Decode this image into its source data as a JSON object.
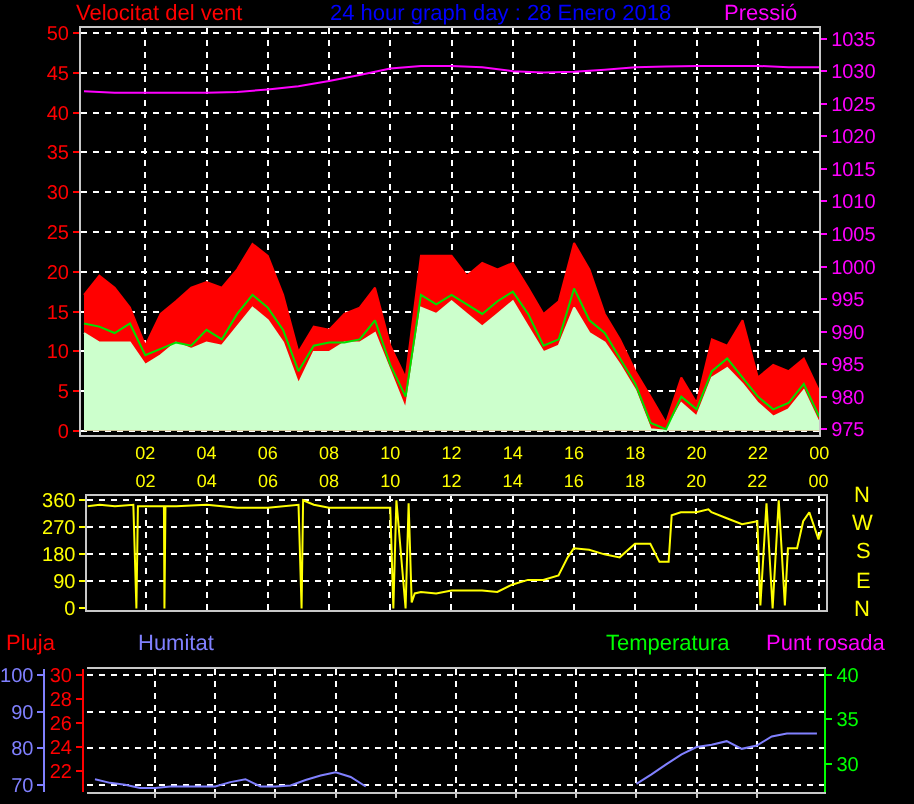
{
  "chart_data": [
    {
      "type": "line",
      "title": "24 hour graph day : 28 Enero 2018",
      "ylabel": "Velocitat del vent",
      "y2label": "Pressió",
      "x": [
        "2018-01-28T00:00",
        "2018-01-28T00:30",
        "2018-01-28T01:00",
        "2018-01-28T01:30",
        "2018-01-28T02:00",
        "2018-01-28T02:30",
        "2018-01-28T03:00",
        "2018-01-28T03:30",
        "2018-01-28T04:00",
        "2018-01-28T04:30",
        "2018-01-28T05:00",
        "2018-01-28T05:30",
        "2018-01-28T06:00",
        "2018-01-28T06:30",
        "2018-01-28T07:00",
        "2018-01-28T07:30",
        "2018-01-28T08:00",
        "2018-01-28T08:30",
        "2018-01-28T09:00",
        "2018-01-28T09:30",
        "2018-01-28T10:00",
        "2018-01-28T10:30",
        "2018-01-28T11:00",
        "2018-01-28T11:30",
        "2018-01-28T12:00",
        "2018-01-28T12:30",
        "2018-01-28T13:00",
        "2018-01-28T13:30",
        "2018-01-28T14:00",
        "2018-01-28T14:30",
        "2018-01-28T15:00",
        "2018-01-28T15:30",
        "2018-01-28T16:00",
        "2018-01-28T16:30",
        "2018-01-28T17:00",
        "2018-01-28T17:30",
        "2018-01-28T18:00",
        "2018-01-28T18:30",
        "2018-01-28T19:00",
        "2018-01-28T19:30",
        "2018-01-28T20:00",
        "2018-01-28T20:30",
        "2018-01-28T21:00",
        "2018-01-28T21:30",
        "2018-01-28T22:00",
        "2018-01-28T22:30",
        "2018-01-28T23:00",
        "2018-01-28T23:30",
        "2018-01-29T00:00"
      ],
      "series": [
        {
          "type": "area",
          "color": "#ff0000",
          "values": [
            17.1,
            19.5,
            18,
            15.5,
            10.7,
            14.7,
            16.3,
            18,
            18.7,
            18,
            20.3,
            23.5,
            22,
            17.1,
            9.9,
            13.1,
            12.7,
            14.7,
            15.5,
            18,
            10.7,
            6.7,
            22,
            22,
            22,
            19.5,
            21.1,
            20.3,
            21.1,
            18,
            14.7,
            16.3,
            23.6,
            20.3,
            14.7,
            11.5,
            7.5,
            4.3,
            1,
            6.7,
            3.5,
            11.5,
            10.7,
            13.9,
            6.7,
            8.3,
            7.5,
            9.1,
            5
          ]
        },
        {
          "type": "area",
          "color": "#ccffcc",
          "values": [
            12.3,
            11.1,
            11.1,
            11.1,
            8.3,
            9.5,
            11.1,
            10.3,
            11.1,
            10.7,
            13.1,
            15.5,
            13.9,
            11.1,
            5.9,
            9.9,
            9.9,
            11.1,
            11.1,
            12.3,
            7.5,
            2.7,
            15.5,
            14.7,
            16.3,
            14.7,
            13.1,
            14.7,
            16.3,
            13.1,
            9.9,
            10.7,
            15.5,
            12.3,
            11.1,
            8.3,
            5.1,
            0.2,
            0,
            3.5,
            1.8,
            6.7,
            7.9,
            5.9,
            3.5,
            1.8,
            2.7,
            5.1,
            1
          ]
        },
        {
          "type": "line",
          "color": "#00e000",
          "values": [
            13.5,
            13.1,
            12.3,
            13.5,
            9.5,
            10.3,
            11.1,
            10.7,
            12.7,
            11.5,
            14.7,
            17.1,
            15.5,
            12.7,
            7.5,
            10.7,
            11.1,
            11.1,
            11.5,
            13.9,
            8.3,
            4.3,
            17.1,
            15.9,
            17.1,
            15.9,
            14.7,
            16.3,
            17.5,
            14.7,
            10.7,
            11.5,
            17.9,
            13.9,
            12.3,
            9.1,
            5.9,
            1,
            0.2,
            4.3,
            2.7,
            7.5,
            9.1,
            6.7,
            4.3,
            2.7,
            3.5,
            5.9,
            1.8
          ]
        },
        {
          "type": "line",
          "axis": "y2",
          "color": "#ff00ff",
          "x": [
            "2018-01-28T00:00",
            "2018-01-28T01:00",
            "2018-01-28T02:00",
            "2018-01-28T03:00",
            "2018-01-28T04:00",
            "2018-01-28T05:00",
            "2018-01-28T06:00",
            "2018-01-28T07:00",
            "2018-01-28T08:00",
            "2018-01-28T09:00",
            "2018-01-28T10:00",
            "2018-01-28T11:00",
            "2018-01-28T12:00",
            "2018-01-28T13:00",
            "2018-01-28T14:00",
            "2018-01-28T15:00",
            "2018-01-28T16:00",
            "2018-01-28T17:00",
            "2018-01-28T18:00",
            "2018-01-28T19:00",
            "2018-01-28T20:00",
            "2018-01-28T21:00",
            "2018-01-28T22:00",
            "2018-01-28T23:00",
            "2018-01-29T00:00"
          ],
          "values": [
            1026.9,
            1026.7,
            1026.7,
            1026.7,
            1026.7,
            1026.8,
            1027.2,
            1027.7,
            1028.5,
            1029.4,
            1030.4,
            1030.8,
            1030.8,
            1030.6,
            1030,
            1029.8,
            1029.9,
            1030.2,
            1030.6,
            1030.7,
            1030.8,
            1030.8,
            1030.8,
            1030.6,
            1030.6
          ]
        }
      ],
      "xlim": [
        "2018-01-27T23:54",
        "2018-01-29T00:00"
      ],
      "xticks": [
        {
          "value": "2018-01-28T02:00",
          "label": "02"
        },
        {
          "value": "2018-01-28T04:00",
          "label": "04"
        },
        {
          "value": "2018-01-28T06:00",
          "label": "06"
        },
        {
          "value": "2018-01-28T08:00",
          "label": "08"
        },
        {
          "value": "2018-01-28T10:00",
          "label": "10"
        },
        {
          "value": "2018-01-28T12:00",
          "label": "12"
        },
        {
          "value": "2018-01-28T14:00",
          "label": "14"
        },
        {
          "value": "2018-01-28T16:00",
          "label": "16"
        },
        {
          "value": "2018-01-28T18:00",
          "label": "18"
        },
        {
          "value": "2018-01-28T20:00",
          "label": "20"
        },
        {
          "value": "2018-01-28T22:00",
          "label": "22"
        },
        {
          "value": "2018-01-29T00:00",
          "label": "00"
        }
      ],
      "ylim": [
        -0.55,
        50.7
      ],
      "yticks": [
        0,
        5,
        10,
        15,
        20,
        25,
        30,
        35,
        40,
        45,
        50
      ],
      "y2lim": [
        974.1,
        1036.7
      ],
      "y2ticks": [
        975,
        980,
        985,
        990,
        995,
        1000,
        1005,
        1010,
        1015,
        1020,
        1025,
        1030,
        1035
      ],
      "grid": true
    },
    {
      "type": "line",
      "series": [
        {
          "color": "#ffff00",
          "x": [
            "2018-01-28T00:06",
            "2018-01-28T00:30",
            "2018-01-28T01:00",
            "2018-01-28T01:36",
            "2018-01-28T01:42",
            "2018-01-28T01:45",
            "2018-01-28T02:36",
            "2018-01-28T02:37",
            "2018-01-28T02:39",
            "2018-01-28T03:00",
            "2018-01-28T04:00",
            "2018-01-28T05:00",
            "2018-01-28T06:00",
            "2018-01-28T07:00",
            "2018-01-28T07:06",
            "2018-01-28T07:09",
            "2018-01-28T07:30",
            "2018-01-28T08:00",
            "2018-01-28T09:00",
            "2018-01-28T10:00",
            "2018-01-28T10:06",
            "2018-01-28T10:12",
            "2018-01-28T10:30",
            "2018-01-28T10:36",
            "2018-01-28T10:42",
            "2018-01-28T10:48",
            "2018-01-28T11:00",
            "2018-01-28T11:30",
            "2018-01-28T12:00",
            "2018-01-28T12:30",
            "2018-01-28T13:00",
            "2018-01-28T13:30",
            "2018-01-28T14:00",
            "2018-01-28T14:30",
            "2018-01-28T15:00",
            "2018-01-28T15:30",
            "2018-01-28T15:48",
            "2018-01-28T16:00",
            "2018-01-28T16:30",
            "2018-01-28T17:00",
            "2018-01-28T17:30",
            "2018-01-28T18:00",
            "2018-01-28T18:30",
            "2018-01-28T18:48",
            "2018-01-28T19:06",
            "2018-01-28T19:12",
            "2018-01-28T19:30",
            "2018-01-28T20:00",
            "2018-01-28T20:24",
            "2018-01-28T20:30",
            "2018-01-28T21:00",
            "2018-01-28T21:30",
            "2018-01-28T22:00",
            "2018-01-28T22:06",
            "2018-01-28T22:18",
            "2018-01-28T22:30",
            "2018-01-28T22:42",
            "2018-01-28T22:54",
            "2018-01-28T23:00",
            "2018-01-28T23:18",
            "2018-01-28T23:30",
            "2018-01-28T23:42",
            "2018-01-29T00:00",
            "2018-01-29T00:06"
          ],
          "values": [
            340,
            345,
            340,
            345,
            0,
            340,
            340,
            0,
            340,
            340,
            345,
            335,
            335,
            345,
            0,
            360,
            345,
            335,
            335,
            335,
            0,
            360,
            0,
            350,
            20,
            50,
            55,
            50,
            60,
            60,
            60,
            55,
            80,
            95,
            95,
            110,
            170,
            200,
            195,
            180,
            170,
            215,
            215,
            155,
            155,
            310,
            320,
            320,
            330,
            320,
            300,
            280,
            290,
            10,
            350,
            0,
            360,
            10,
            200,
            200,
            290,
            320,
            230,
            260
          ]
        }
      ],
      "xlim": [
        "2018-01-28T00:06",
        "2018-01-29T00:14"
      ],
      "xticks": [
        {
          "value": "2018-01-28T02:00",
          "label": "02"
        },
        {
          "value": "2018-01-28T04:00",
          "label": "04"
        },
        {
          "value": "2018-01-28T06:00",
          "label": "06"
        },
        {
          "value": "2018-01-28T08:00",
          "label": "08"
        },
        {
          "value": "2018-01-28T10:00",
          "label": "10"
        },
        {
          "value": "2018-01-28T12:00",
          "label": "12"
        },
        {
          "value": "2018-01-28T14:00",
          "label": "14"
        },
        {
          "value": "2018-01-28T16:00",
          "label": "16"
        },
        {
          "value": "2018-01-28T18:00",
          "label": "18"
        },
        {
          "value": "2018-01-28T20:00",
          "label": "20"
        },
        {
          "value": "2018-01-28T22:00",
          "label": "22"
        },
        {
          "value": "2018-01-29T00:00",
          "label": "00"
        }
      ],
      "ylim": [
        -6,
        374
      ],
      "yticks": [
        0,
        90,
        180,
        270,
        360
      ],
      "annotations": [
        "N",
        "W",
        "S",
        "E",
        "N"
      ],
      "grid": true
    },
    {
      "type": "line",
      "y3label": "Temperatura",
      "annotations": [
        "Pluja",
        "Humitat",
        "Punt rosada"
      ],
      "series": [
        {
          "color": "#8080ff",
          "values": [
            71.5,
            70.5,
            70,
            69.1,
            69.1,
            69.5,
            69.5,
            69.5,
            69.5,
            70.7,
            71.5,
            69.5,
            69.5,
            69.8,
            71.3,
            72.5,
            73.4,
            72.1,
            69.5,
            null,
            null,
            null,
            null,
            null,
            null,
            null,
            null,
            null,
            null,
            null,
            null,
            null,
            null,
            null,
            null,
            null,
            70.2,
            72.8,
            75.6,
            78.3,
            80.3,
            80.9,
            81.9,
            79.8,
            80.7,
            83.2,
            84,
            84,
            84
          ]
        }
      ],
      "categories": [
        null,
        null,
        null,
        null,
        null,
        null,
        null,
        null,
        null,
        null,
        null,
        null,
        null,
        null,
        null,
        null,
        null,
        null,
        null,
        null,
        null,
        null,
        null,
        null,
        null,
        null,
        null,
        null,
        null,
        null,
        null,
        null,
        null,
        null,
        null,
        null,
        null,
        null,
        null,
        null,
        null,
        null,
        null,
        null,
        null,
        null,
        null,
        null,
        null
      ],
      "ylim": [
        68,
        101.6
      ],
      "yticks": [
        70,
        80,
        90,
        100
      ],
      "y2lim": [
        20.2,
        30.5
      ],
      "y2ticks": [
        22,
        24,
        26,
        28,
        30
      ],
      "y3lim": [
        26.85,
        40.66
      ],
      "y3ticks": [
        30,
        35,
        40
      ],
      "grid": true
    }
  ]
}
